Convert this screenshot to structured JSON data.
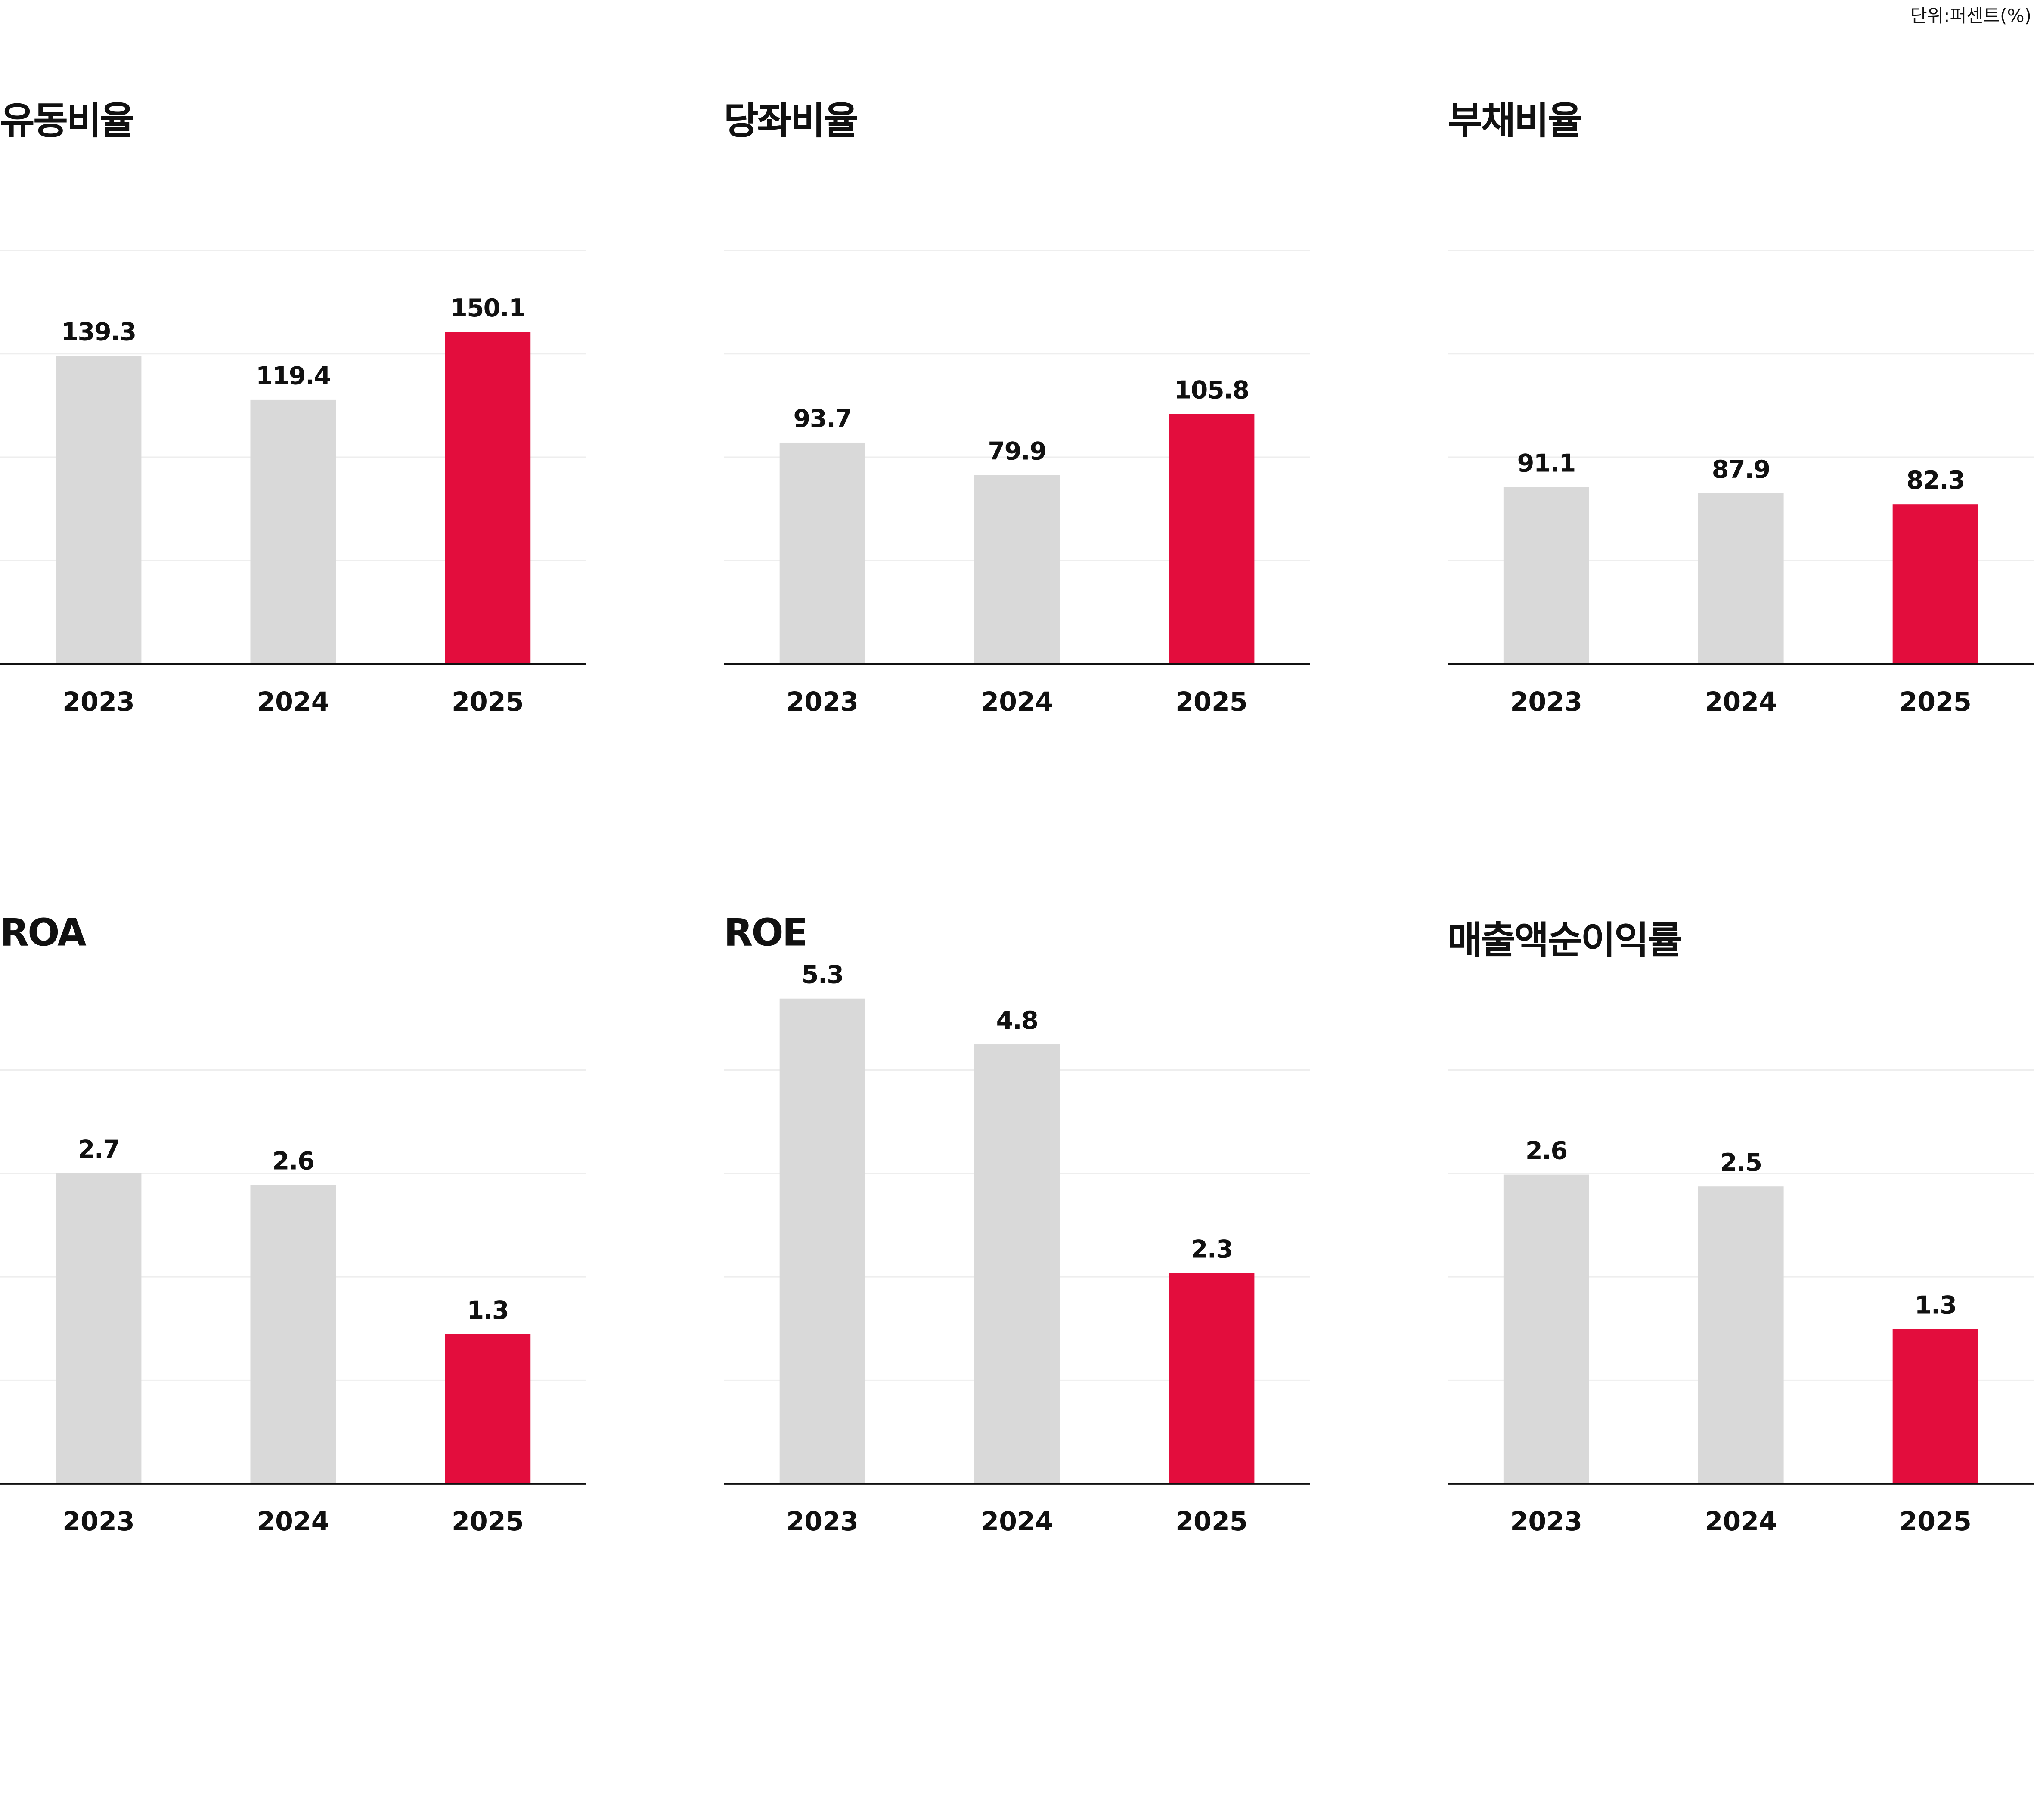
{
  "unit_label": "단위:퍼센트(%)",
  "colors": {
    "highlight": "#E30D3D",
    "bar": "#D9D9D9",
    "grid": "#EEEEEE",
    "axis": "#111111"
  },
  "chart_data": [
    {
      "type": "bar",
      "title": "유동비율",
      "categories": [
        "2023",
        "2024",
        "2025"
      ],
      "values": [
        139.3,
        119.4,
        150.1
      ],
      "value_labels": [
        "139.3",
        "119.4",
        "150.1"
      ],
      "highlight_index": 2,
      "ylim": [
        0,
        187
      ],
      "grid": true
    },
    {
      "type": "bar",
      "title": "당좌비율",
      "categories": [
        "2023",
        "2024",
        "2025"
      ],
      "values": [
        93.7,
        79.9,
        105.8
      ],
      "value_labels": [
        "93.7",
        "79.9",
        "105.8"
      ],
      "highlight_index": 2,
      "ylim": [
        0,
        175
      ],
      "grid": true
    },
    {
      "type": "bar",
      "title": "부채비율",
      "categories": [
        "2023",
        "2024",
        "2025"
      ],
      "values": [
        91.1,
        87.9,
        82.3
      ],
      "value_labels": [
        "91.1",
        "87.9",
        "82.3"
      ],
      "highlight_index": 2,
      "ylim": [
        0,
        213
      ],
      "grid": true
    },
    {
      "type": "bar",
      "title": "ROA",
      "categories": [
        "2023",
        "2024",
        "2025"
      ],
      "values": [
        2.7,
        2.6,
        1.3
      ],
      "value_labels": [
        "2.7",
        "2.6",
        "1.3"
      ],
      "highlight_index": 2,
      "ylim": [
        0,
        3.6
      ],
      "grid": true
    },
    {
      "type": "bar",
      "title": "ROE",
      "categories": [
        "2023",
        "2024",
        "2025"
      ],
      "values": [
        5.3,
        4.8,
        2.3
      ],
      "value_labels": [
        "5.3",
        "4.8",
        "2.3"
      ],
      "highlight_index": 2,
      "ylim": [
        0,
        4.52
      ],
      "grid": true
    },
    {
      "type": "bar",
      "title": "매출액순이익률",
      "categories": [
        "2023",
        "2024",
        "2025"
      ],
      "values": [
        2.6,
        2.5,
        1.3
      ],
      "value_labels": [
        "2.6",
        "2.5",
        "1.3"
      ],
      "highlight_index": 2,
      "ylim": [
        0,
        3.48
      ],
      "grid": true
    }
  ]
}
